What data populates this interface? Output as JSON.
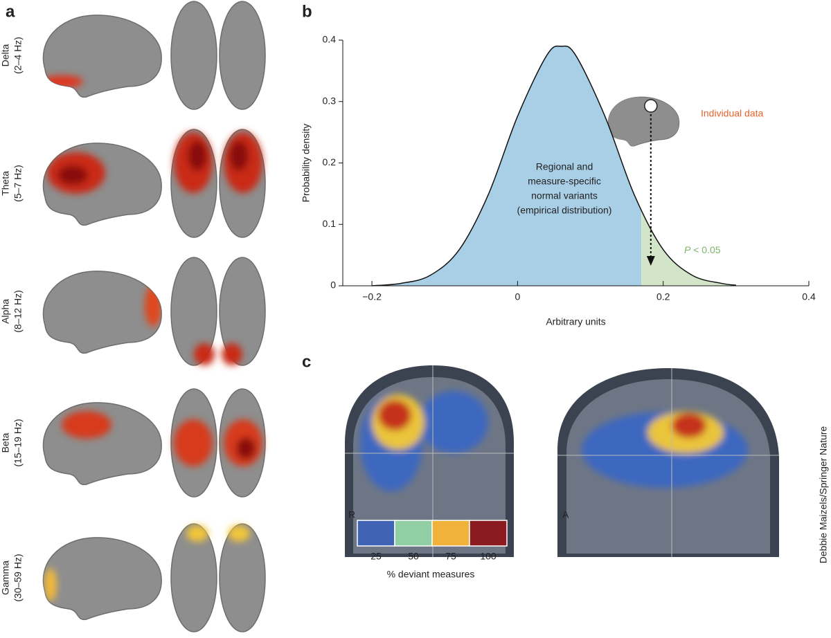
{
  "panel_labels": [
    "a",
    "b",
    "c"
  ],
  "panel_a": {
    "bands": [
      {
        "name": "Delta",
        "range": "(2–4 Hz)"
      },
      {
        "name": "Theta",
        "range": "(5–7 Hz)"
      },
      {
        "name": "Alpha",
        "range": "(8–12 Hz)"
      },
      {
        "name": "Beta",
        "range": "(15–19 Hz)"
      },
      {
        "name": "Gamma",
        "range": "(30–59 Hz)"
      }
    ]
  },
  "chart_data": {
    "type": "area",
    "xlabel": "Arbitrary units",
    "ylabel": "Probability density",
    "x": [
      -0.2,
      -0.16,
      -0.12,
      -0.08,
      -0.04,
      0,
      0.04,
      0.06,
      0.08,
      0.12,
      0.16,
      0.2,
      0.24,
      0.28,
      0.3
    ],
    "values": [
      0,
      0.004,
      0.017,
      0.059,
      0.149,
      0.276,
      0.375,
      0.39,
      0.375,
      0.276,
      0.149,
      0.059,
      0.017,
      0.004,
      0.001
    ],
    "threshold": 0.17,
    "individual_value": 0.183,
    "color": "#a9cfe7",
    "tail_color": "#d3e5c8",
    "xlim": [
      -0.24,
      0.4
    ],
    "ylim": [
      0,
      0.4
    ],
    "xticks": [
      {
        "value": -0.2,
        "label": "−0.2"
      },
      0,
      0.2,
      0.4
    ],
    "yticks": [
      0,
      0.1,
      0.2,
      0.3,
      0.4
    ],
    "normal_label": [
      "Regional and",
      "measure-specific",
      "normal variants",
      "(empirical distribution)"
    ],
    "individual_label": "Individual data",
    "p_label": {
      "italic": "P",
      "rest": " < 0.05"
    }
  },
  "panel_c": {
    "view_labels": [
      "R",
      "A"
    ],
    "colorbar": {
      "ticks": [
        25,
        50,
        75,
        100
      ],
      "colors": [
        "#4163b3",
        "#92cea3",
        "#f0b23b",
        "#8c1b1f"
      ],
      "label": "% deviant measures"
    }
  },
  "credit": "Debbie Maizels/Springer Nature"
}
